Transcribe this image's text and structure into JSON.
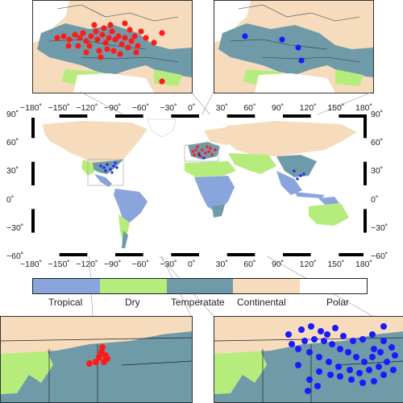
{
  "colors": {
    "tropical": "#8aa4dc",
    "dry": "#b6ec7c",
    "temperate": "#6f9ba8",
    "continental": "#f6dcbd",
    "polar": "#ffffff",
    "red_points": "#ff1a1a",
    "blue_points": "#1a1aff",
    "border": "#1a1a1a"
  },
  "map": {
    "lon_ticks": [
      "−180˚",
      "−150˚",
      "−120˚",
      "−90˚",
      "−60˚",
      "−30˚",
      "0˚",
      "30˚",
      "60˚",
      "90˚",
      "120˚",
      "150˚",
      "180˚"
    ],
    "lat_ticks": [
      "90˚",
      "60˚",
      "30˚",
      "0˚",
      "−30˚",
      "−60˚"
    ]
  },
  "legend": {
    "items": [
      "Tropical",
      "Dry",
      "Temperatate",
      "Continental",
      "Polar"
    ]
  },
  "insets": {
    "top_left": "europe-red-points",
    "top_right": "europe-blue-points",
    "bottom_left": "north-america-red-points",
    "bottom_right": "north-america-blue-points"
  }
}
